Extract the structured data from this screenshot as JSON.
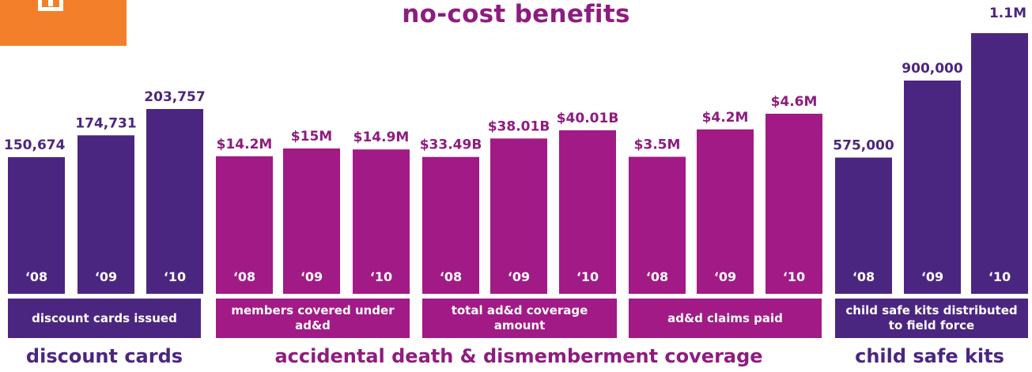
{
  "title": "no-cost benefits",
  "colors": {
    "purple": "#4b2680",
    "magenta": "#a11a86",
    "orange": "#f47f2b"
  },
  "chart_data": [
    {
      "type": "bar",
      "group": "discount cards",
      "metric": "discount cards issued",
      "categories": [
        "'08",
        "'09",
        "'10"
      ],
      "category_labels": [
        "‘08",
        "‘09",
        "‘10"
      ],
      "values": [
        150674,
        174731,
        203757
      ],
      "value_labels": [
        "150,674",
        "174,731",
        "203,757"
      ],
      "color": "#4b2680"
    },
    {
      "type": "bar",
      "group": "accidental death & dismemberment coverage",
      "metric": "members covered under ad&d",
      "categories": [
        "'08",
        "'09",
        "'10"
      ],
      "category_labels": [
        "‘08",
        "‘09",
        "‘10"
      ],
      "values": [
        14.2,
        15,
        14.9
      ],
      "value_labels": [
        "$14.2M",
        "$15M",
        "$14.9M"
      ],
      "color": "#a11a86"
    },
    {
      "type": "bar",
      "group": "accidental death & dismemberment coverage",
      "metric": "total ad&d coverage amount",
      "categories": [
        "'08",
        "'09",
        "'10"
      ],
      "category_labels": [
        "‘08",
        "‘09",
        "‘10"
      ],
      "values": [
        33.49,
        38.01,
        40.01
      ],
      "value_labels": [
        "$33.49B",
        "$38.01B",
        "$40.01B"
      ],
      "color": "#a11a86"
    },
    {
      "type": "bar",
      "group": "accidental death & dismemberment coverage",
      "metric": "ad&d claims paid",
      "categories": [
        "'08",
        "'09",
        "'10"
      ],
      "category_labels": [
        "‘08",
        "‘09",
        "‘10"
      ],
      "values": [
        3.5,
        4.2,
        4.6
      ],
      "value_labels": [
        "$3.5M",
        "$4.2M",
        "$4.6M"
      ],
      "color": "#a11a86"
    },
    {
      "type": "bar",
      "group": "child safe kits",
      "metric": "child safe kits distributed to field force",
      "categories": [
        "'08",
        "'09",
        "'10"
      ],
      "category_labels": [
        "‘08",
        "‘09",
        "‘10"
      ],
      "values": [
        575000,
        900000,
        1100000
      ],
      "value_labels": [
        "575,000",
        "900,000",
        "1.1M"
      ],
      "color": "#4b2680"
    }
  ]
}
